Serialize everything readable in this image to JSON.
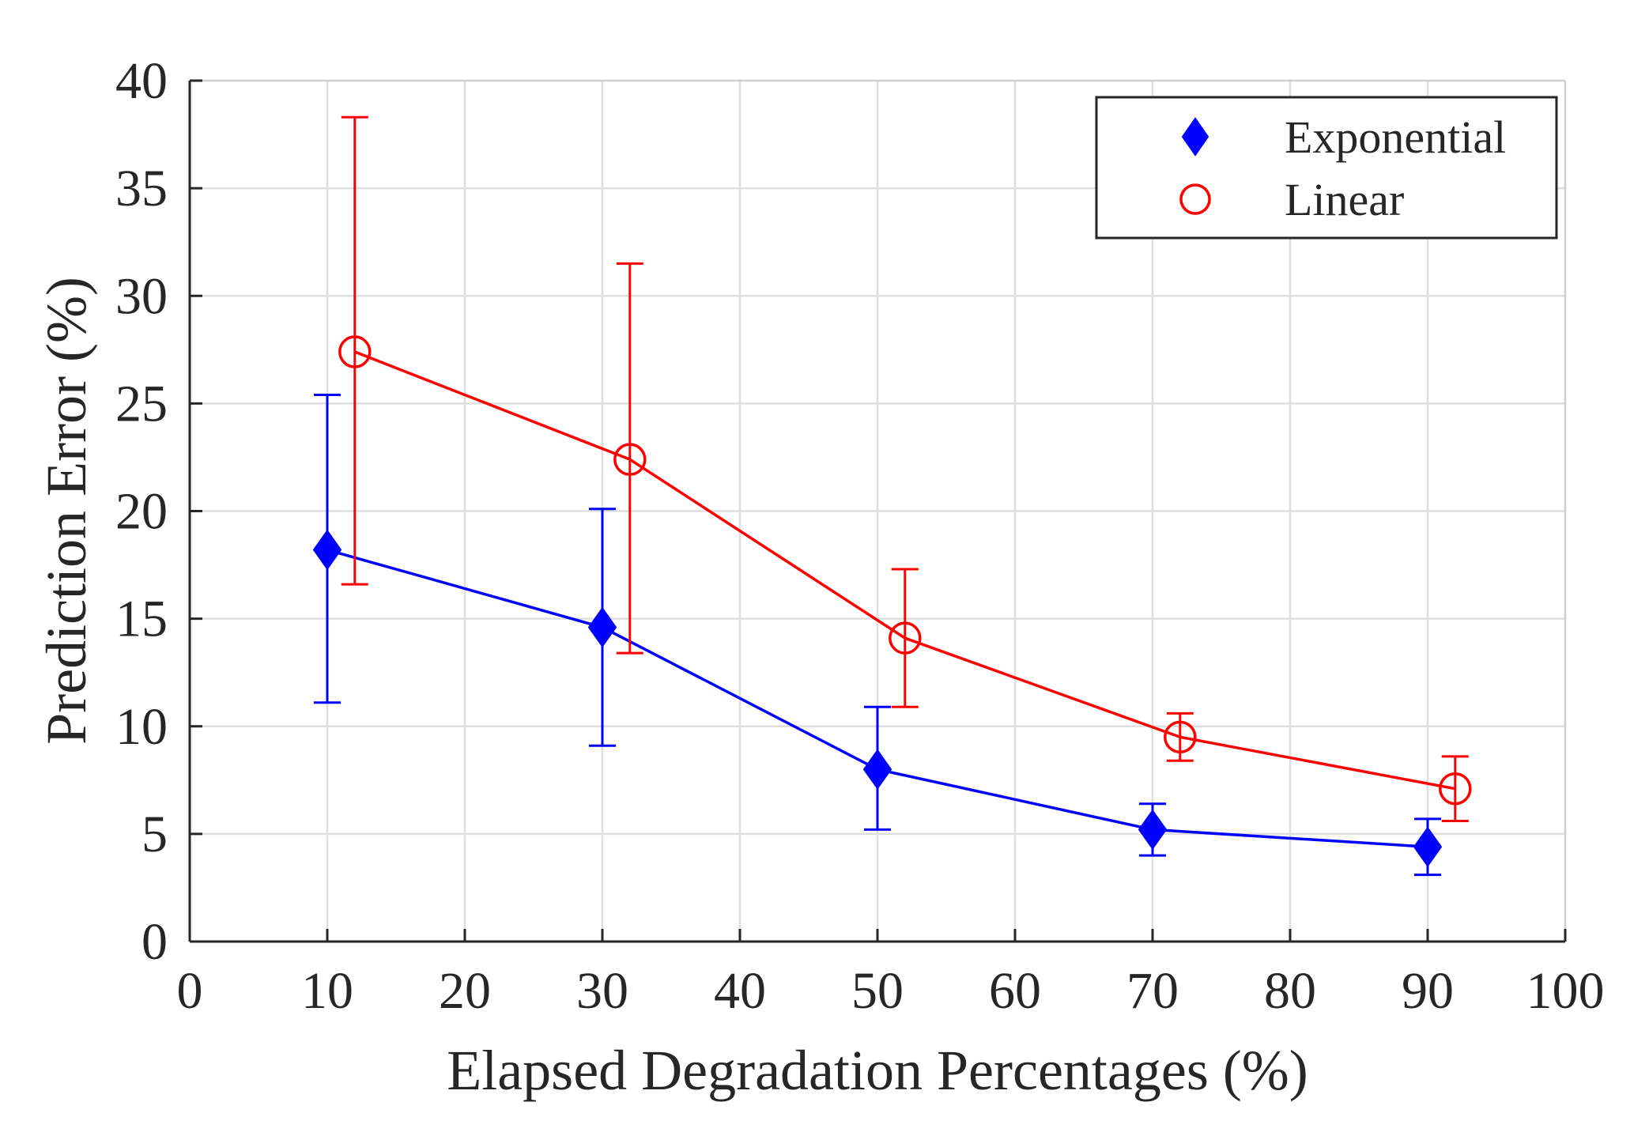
{
  "chart_data": {
    "type": "line",
    "title": "",
    "xlabel": "Elapsed Degradation Percentages (%)",
    "ylabel": "Prediction Error (%)",
    "xlim": [
      0,
      100
    ],
    "ylim": [
      0,
      40
    ],
    "xticks": [
      0,
      10,
      20,
      30,
      40,
      50,
      60,
      70,
      80,
      90,
      100
    ],
    "yticks": [
      0,
      5,
      10,
      15,
      20,
      25,
      30,
      35,
      40
    ],
    "grid": true,
    "legend_position": "top-right",
    "series": [
      {
        "name": "Exponential",
        "marker": "diamond",
        "color": "#0000ff",
        "x": [
          10,
          30,
          50,
          70,
          90
        ],
        "y": [
          18.2,
          14.6,
          8.0,
          5.2,
          4.4
        ],
        "err_low": [
          11.1,
          9.1,
          5.2,
          4.0,
          3.1
        ],
        "err_high": [
          25.4,
          20.1,
          10.9,
          6.4,
          5.7
        ]
      },
      {
        "name": "Linear",
        "marker": "circle",
        "color": "#ff0000",
        "x": [
          12,
          32,
          52,
          72,
          92
        ],
        "y": [
          27.4,
          22.4,
          14.1,
          9.5,
          7.1
        ],
        "err_low": [
          16.6,
          13.4,
          10.9,
          8.4,
          5.6
        ],
        "err_high": [
          38.3,
          31.5,
          17.3,
          10.6,
          8.6
        ]
      }
    ]
  }
}
